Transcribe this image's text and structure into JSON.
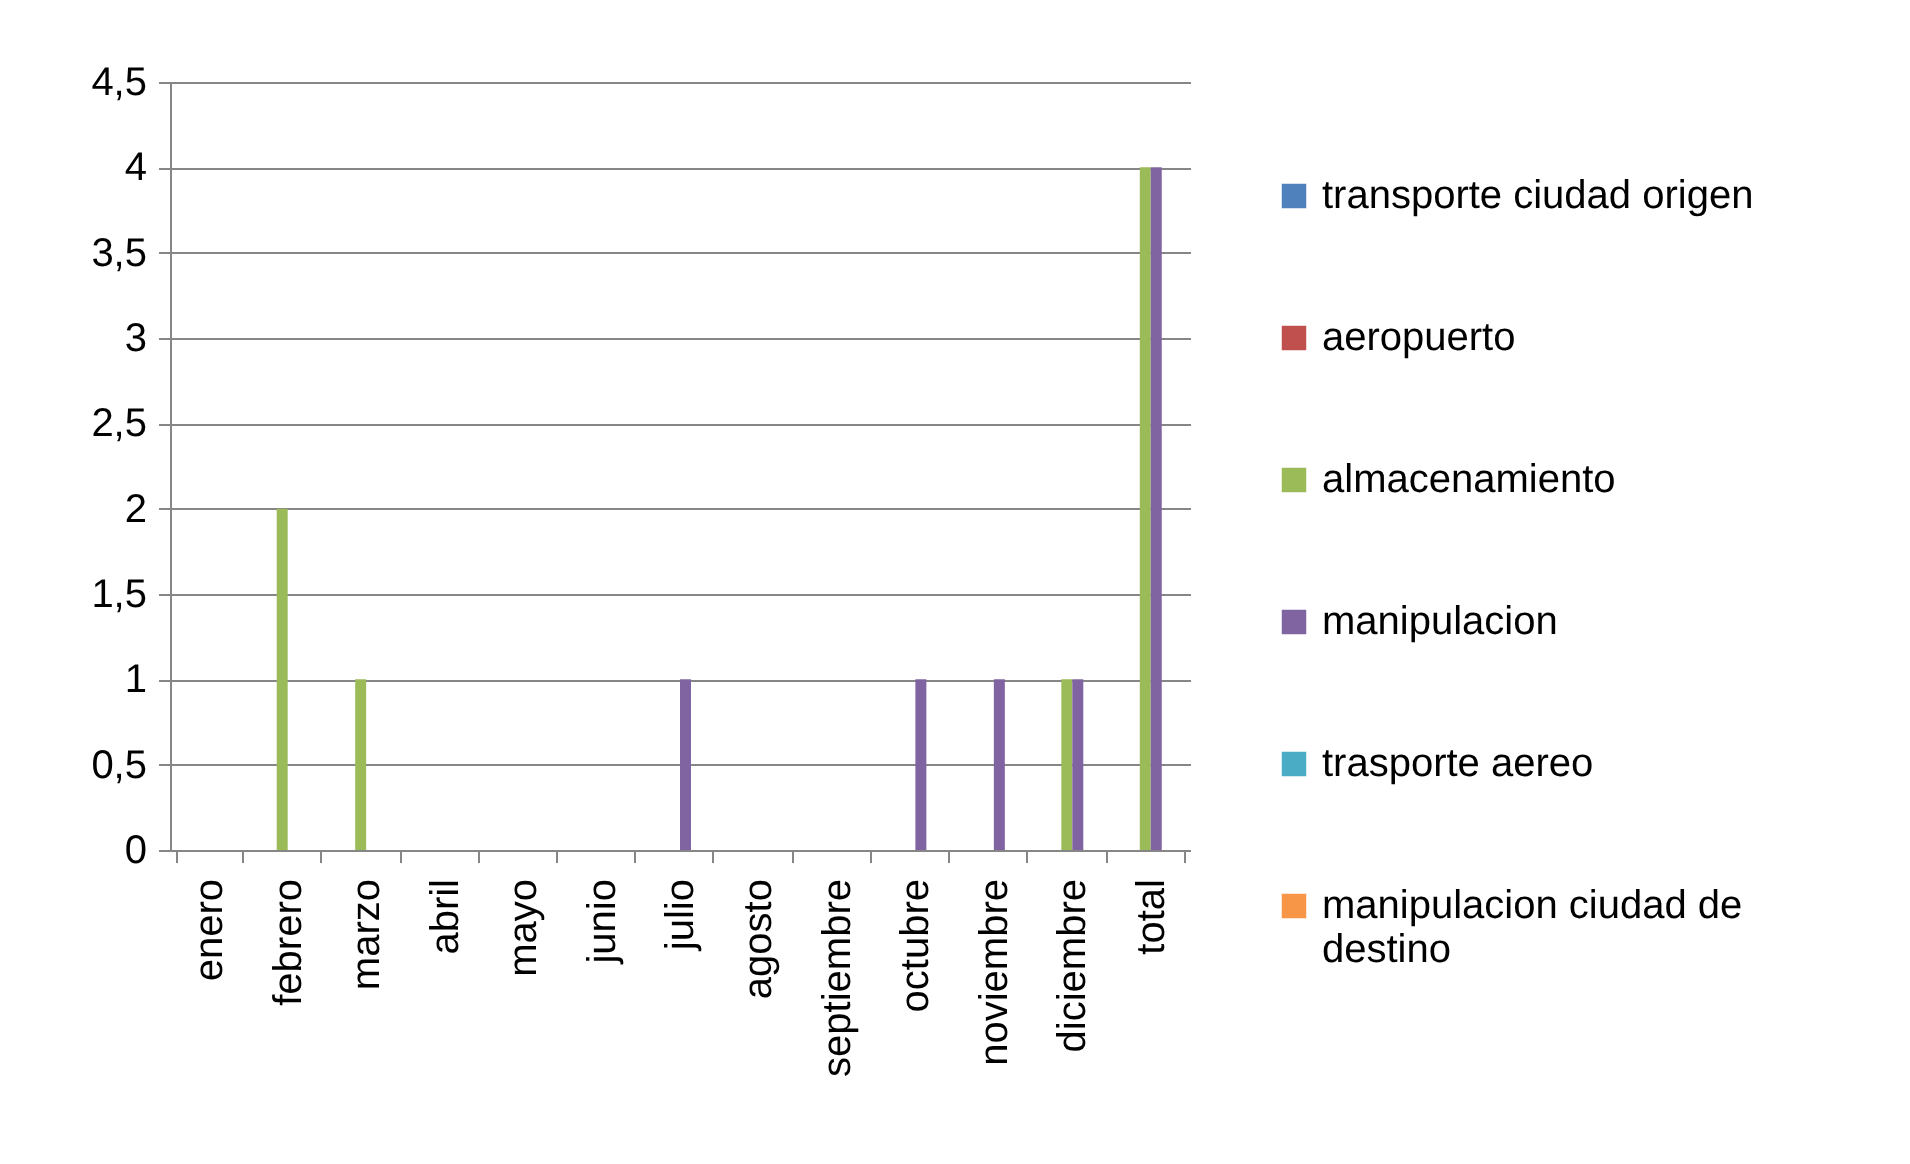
{
  "chart_data": {
    "type": "bar",
    "categories": [
      "enero",
      "febrero",
      "marzo",
      "abril",
      "mayo",
      "junio",
      "julio",
      "agosto",
      "septiembre",
      "octubre",
      "noviembre",
      "diciembre",
      "total"
    ],
    "series": [
      {
        "name": "transporte ciudad origen",
        "color": "#4f81bd",
        "values": [
          0,
          0,
          0,
          0,
          0,
          0,
          0,
          0,
          0,
          0,
          0,
          0,
          0
        ]
      },
      {
        "name": "aeropuerto",
        "color": "#c0504d",
        "values": [
          0,
          0,
          0,
          0,
          0,
          0,
          0,
          0,
          0,
          0,
          0,
          0,
          0
        ]
      },
      {
        "name": "almacenamiento",
        "color": "#9bbb59",
        "values": [
          0,
          2,
          1,
          0,
          0,
          0,
          0,
          0,
          0,
          0,
          0,
          1,
          4
        ]
      },
      {
        "name": "manipulacion",
        "color": "#8064a2",
        "values": [
          0,
          0,
          0,
          0,
          0,
          0,
          1,
          0,
          0,
          1,
          1,
          1,
          4
        ]
      },
      {
        "name": "trasporte aereo",
        "color": "#4bacc6",
        "values": [
          0,
          0,
          0,
          0,
          0,
          0,
          0,
          0,
          0,
          0,
          0,
          0,
          0
        ]
      },
      {
        "name": "manipulacion ciudad de destino",
        "color": "#f79646",
        "values": [
          0,
          0,
          0,
          0,
          0,
          0,
          0,
          0,
          0,
          0,
          0,
          0,
          0
        ]
      }
    ],
    "ylim": [
      0,
      4.5
    ],
    "yticks": [
      0,
      {
        "value": 0.5,
        "label": "0,5"
      },
      1,
      {
        "value": 1.5,
        "label": "1,5"
      },
      2,
      {
        "value": 2.5,
        "label": "2,5"
      },
      3,
      {
        "value": 3.5,
        "label": "3,5"
      },
      4,
      {
        "value": 4.5,
        "label": "4,5"
      }
    ],
    "grid": "y",
    "legend": "right"
  }
}
